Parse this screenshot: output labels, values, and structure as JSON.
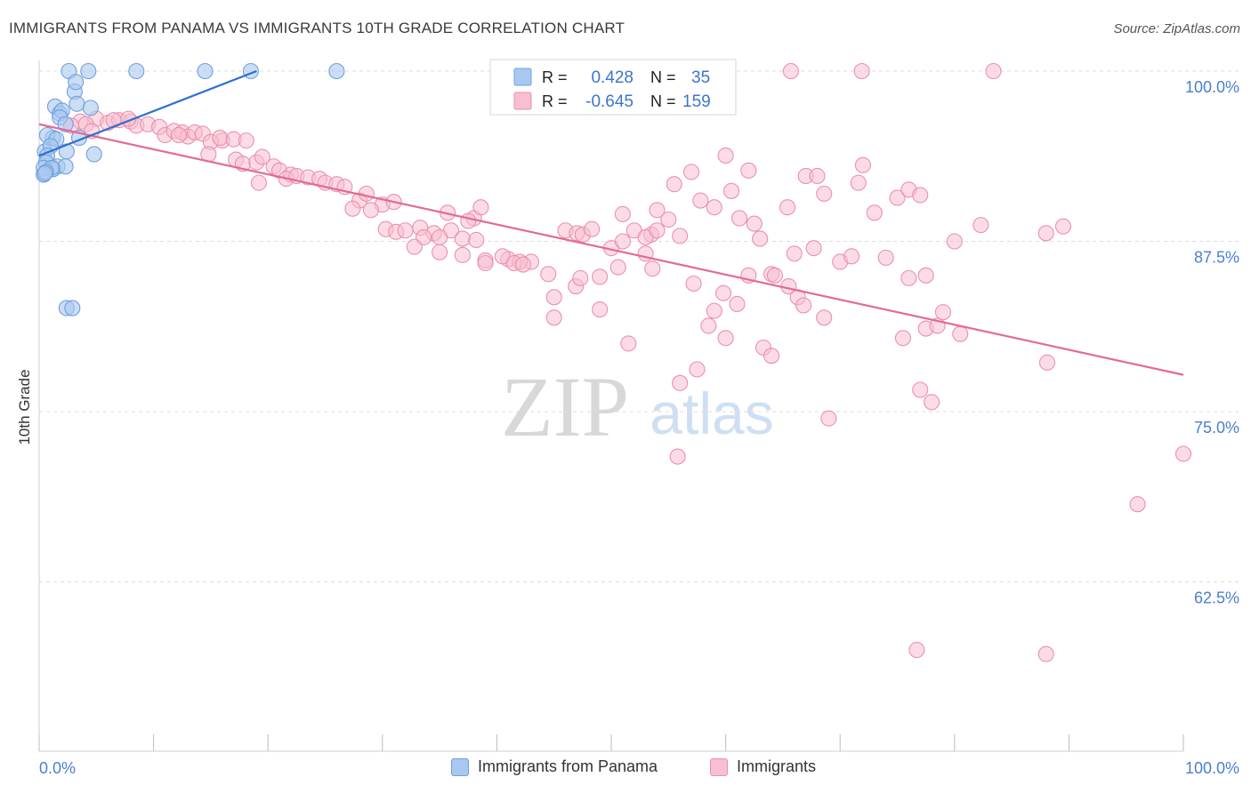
{
  "title": "IMMIGRANTS FROM PANAMA VS IMMIGRANTS 10TH GRADE CORRELATION CHART",
  "source": "Source: ZipAtlas.com",
  "watermark": {
    "zip": "ZIP",
    "atlas": "atlas"
  },
  "colors": {
    "blue_fill": "#a9c8f0",
    "blue_stroke": "#6fa0dc",
    "blue_line": "#2f6fcf",
    "pink_fill": "#f7bfd0",
    "pink_stroke": "#ec8fae",
    "pink_line": "#e46a93",
    "grid": "#dcdcdc",
    "tick_label": "#4a7fd1"
  },
  "legend_top": [
    {
      "r_label": "R =",
      "r_value": "0.428",
      "n_label": "N =",
      "n_value": "35"
    },
    {
      "r_label": "R =",
      "r_value": "-0.645",
      "n_label": "N =",
      "n_value": "159"
    }
  ],
  "legend_bottom": [
    "Immigrants from Panama",
    "Immigrants"
  ],
  "chart_data": {
    "type": "scatter",
    "title": "IMMIGRANTS FROM PANAMA VS IMMIGRANTS 10TH GRADE CORRELATION CHART",
    "xlabel": "",
    "ylabel": "10th Grade",
    "xlim": [
      0,
      100
    ],
    "ylim": [
      50,
      100
    ],
    "x_tick_labels": [
      "0.0%",
      "100.0%"
    ],
    "y_ticks": [
      62.5,
      75.0,
      87.5,
      100.0
    ],
    "y_tick_labels": [
      "62.5%",
      "75.0%",
      "87.5%",
      "100.0%"
    ],
    "grid": "horizontal dashed",
    "series": [
      {
        "name": "Immigrants from Panama",
        "r": 0.428,
        "n": 35,
        "trend": {
          "x": [
            0.0,
            19.0
          ],
          "y": [
            93.8,
            100.0
          ]
        },
        "points": [
          [
            2.6,
            100
          ],
          [
            4.3,
            100
          ],
          [
            8.5,
            100
          ],
          [
            14.5,
            100
          ],
          [
            18.5,
            100
          ],
          [
            26.0,
            100
          ],
          [
            3.1,
            98.5
          ],
          [
            3.2,
            99.2
          ],
          [
            3.3,
            97.6
          ],
          [
            4.5,
            97.3
          ],
          [
            1.4,
            97.4
          ],
          [
            1.8,
            96.9
          ],
          [
            2.0,
            97.1
          ],
          [
            1.8,
            96.6
          ],
          [
            2.3,
            96.1
          ],
          [
            1.2,
            95.1
          ],
          [
            0.7,
            95.3
          ],
          [
            1.5,
            95.0
          ],
          [
            3.5,
            95.1
          ],
          [
            0.5,
            94.1
          ],
          [
            2.4,
            94.1
          ],
          [
            1.0,
            94.5
          ],
          [
            0.7,
            93.8
          ],
          [
            4.8,
            93.9
          ],
          [
            0.6,
            93.3
          ],
          [
            1.6,
            93.0
          ],
          [
            1.2,
            92.8
          ],
          [
            0.4,
            92.9
          ],
          [
            2.3,
            93.0
          ],
          [
            1.1,
            92.9
          ],
          [
            0.4,
            92.4
          ],
          [
            0.6,
            92.6
          ],
          [
            0.5,
            92.5
          ],
          [
            2.4,
            82.6
          ],
          [
            2.9,
            82.6
          ]
        ]
      },
      {
        "name": "Immigrants",
        "r": -0.645,
        "n": 159,
        "trend": {
          "x": [
            0.0,
            100.0
          ],
          "y": [
            96.1,
            77.7
          ]
        },
        "points": [
          [
            65.7,
            100
          ],
          [
            71.9,
            100
          ],
          [
            83.4,
            100
          ],
          [
            3.6,
            96.3
          ],
          [
            5.0,
            96.5
          ],
          [
            6.0,
            96.2
          ],
          [
            7.0,
            96.4
          ],
          [
            8.0,
            96.3
          ],
          [
            8.5,
            96.0
          ],
          [
            2.8,
            96.0
          ],
          [
            4.1,
            96.1
          ],
          [
            6.5,
            96.4
          ],
          [
            7.8,
            96.5
          ],
          [
            9.5,
            96.1
          ],
          [
            10.5,
            95.9
          ],
          [
            11.0,
            95.3
          ],
          [
            11.8,
            95.6
          ],
          [
            12.5,
            95.5
          ],
          [
            13.0,
            95.2
          ],
          [
            13.6,
            95.5
          ],
          [
            12.2,
            95.3
          ],
          [
            14.3,
            95.4
          ],
          [
            4.6,
            95.6
          ],
          [
            16.0,
            94.9
          ],
          [
            15.0,
            94.8
          ],
          [
            15.8,
            95.1
          ],
          [
            17.0,
            95.0
          ],
          [
            18.1,
            94.9
          ],
          [
            14.8,
            93.9
          ],
          [
            17.2,
            93.5
          ],
          [
            17.8,
            93.2
          ],
          [
            19.0,
            93.3
          ],
          [
            19.5,
            93.7
          ],
          [
            20.5,
            93.0
          ],
          [
            21.0,
            92.7
          ],
          [
            22.0,
            92.4
          ],
          [
            21.6,
            92.1
          ],
          [
            22.5,
            92.3
          ],
          [
            23.5,
            92.2
          ],
          [
            24.5,
            92.1
          ],
          [
            25.0,
            91.8
          ],
          [
            26.0,
            91.7
          ],
          [
            26.7,
            91.5
          ],
          [
            19.2,
            91.8
          ],
          [
            28.0,
            90.5
          ],
          [
            28.6,
            91.0
          ],
          [
            30.0,
            90.2
          ],
          [
            31.0,
            90.4
          ],
          [
            35.7,
            89.6
          ],
          [
            38.0,
            89.2
          ],
          [
            37.5,
            89.0
          ],
          [
            38.6,
            90.0
          ],
          [
            27.4,
            89.9
          ],
          [
            29.0,
            89.8
          ],
          [
            30.3,
            88.4
          ],
          [
            31.2,
            88.2
          ],
          [
            32.0,
            88.3
          ],
          [
            33.3,
            88.5
          ],
          [
            34.5,
            88.1
          ],
          [
            36.0,
            88.3
          ],
          [
            33.6,
            87.8
          ],
          [
            35.0,
            87.8
          ],
          [
            37.0,
            87.7
          ],
          [
            38.2,
            87.6
          ],
          [
            32.8,
            87.1
          ],
          [
            35.0,
            86.7
          ],
          [
            37.0,
            86.5
          ],
          [
            39.0,
            86.1
          ],
          [
            39.0,
            85.9
          ],
          [
            41.0,
            86.2
          ],
          [
            43.0,
            86.0
          ],
          [
            42.0,
            86.0
          ],
          [
            40.5,
            86.4
          ],
          [
            41.5,
            85.9
          ],
          [
            42.3,
            85.8
          ],
          [
            44.5,
            85.1
          ],
          [
            45.0,
            83.4
          ],
          [
            46.0,
            88.3
          ],
          [
            47.0,
            88.1
          ],
          [
            47.5,
            88.0
          ],
          [
            48.3,
            88.4
          ],
          [
            50.0,
            87.0
          ],
          [
            51.0,
            87.5
          ],
          [
            46.9,
            84.2
          ],
          [
            47.3,
            84.8
          ],
          [
            49.0,
            84.9
          ],
          [
            50.6,
            85.6
          ],
          [
            53.0,
            86.6
          ],
          [
            53.6,
            85.5
          ],
          [
            45.0,
            81.9
          ],
          [
            49.0,
            82.5
          ],
          [
            51.5,
            80.0
          ],
          [
            53.5,
            88.0
          ],
          [
            55.0,
            89.1
          ],
          [
            56.0,
            87.9
          ],
          [
            54.0,
            89.8
          ],
          [
            55.5,
            91.7
          ],
          [
            57.0,
            92.6
          ],
          [
            57.8,
            90.5
          ],
          [
            59.0,
            90.0
          ],
          [
            57.2,
            84.4
          ],
          [
            59.8,
            83.7
          ],
          [
            60.0,
            80.4
          ],
          [
            62.0,
            85.0
          ],
          [
            63.0,
            87.7
          ],
          [
            51.0,
            89.5
          ],
          [
            52.0,
            88.3
          ],
          [
            53.0,
            87.8
          ],
          [
            54.0,
            88.3
          ],
          [
            60.0,
            93.8
          ],
          [
            60.5,
            91.2
          ],
          [
            62.0,
            92.7
          ],
          [
            61.2,
            89.2
          ],
          [
            62.5,
            88.8
          ],
          [
            65.4,
            90.0
          ],
          [
            67.0,
            92.3
          ],
          [
            68.0,
            92.3
          ],
          [
            68.6,
            91.0
          ],
          [
            71.6,
            91.8
          ],
          [
            72.0,
            93.1
          ],
          [
            75.0,
            90.7
          ],
          [
            76.0,
            91.3
          ],
          [
            77.0,
            90.9
          ],
          [
            73.0,
            89.6
          ],
          [
            74.0,
            86.3
          ],
          [
            76.0,
            84.8
          ],
          [
            77.5,
            85.0
          ],
          [
            80.0,
            87.5
          ],
          [
            82.3,
            88.7
          ],
          [
            88.0,
            88.1
          ],
          [
            89.5,
            88.6
          ],
          [
            70.0,
            86.0
          ],
          [
            71.0,
            86.4
          ],
          [
            67.7,
            87.0
          ],
          [
            66.0,
            86.6
          ],
          [
            64.0,
            85.1
          ],
          [
            58.5,
            81.3
          ],
          [
            59.0,
            82.4
          ],
          [
            61.0,
            82.9
          ],
          [
            64.3,
            85.0
          ],
          [
            65.5,
            84.2
          ],
          [
            66.3,
            83.4
          ],
          [
            66.8,
            82.8
          ],
          [
            68.6,
            81.9
          ],
          [
            75.5,
            80.4
          ],
          [
            77.5,
            81.1
          ],
          [
            78.5,
            81.3
          ],
          [
            79.0,
            82.3
          ],
          [
            80.5,
            80.7
          ],
          [
            63.3,
            79.7
          ],
          [
            64.0,
            79.1
          ],
          [
            57.5,
            78.1
          ],
          [
            56.0,
            77.1
          ],
          [
            69.0,
            74.5
          ],
          [
            77.0,
            76.6
          ],
          [
            78.0,
            75.7
          ],
          [
            55.8,
            71.7
          ],
          [
            88.1,
            78.6
          ],
          [
            100.0,
            71.9
          ],
          [
            96.0,
            68.2
          ],
          [
            76.7,
            57.5
          ],
          [
            88.0,
            57.2
          ]
        ]
      }
    ]
  }
}
